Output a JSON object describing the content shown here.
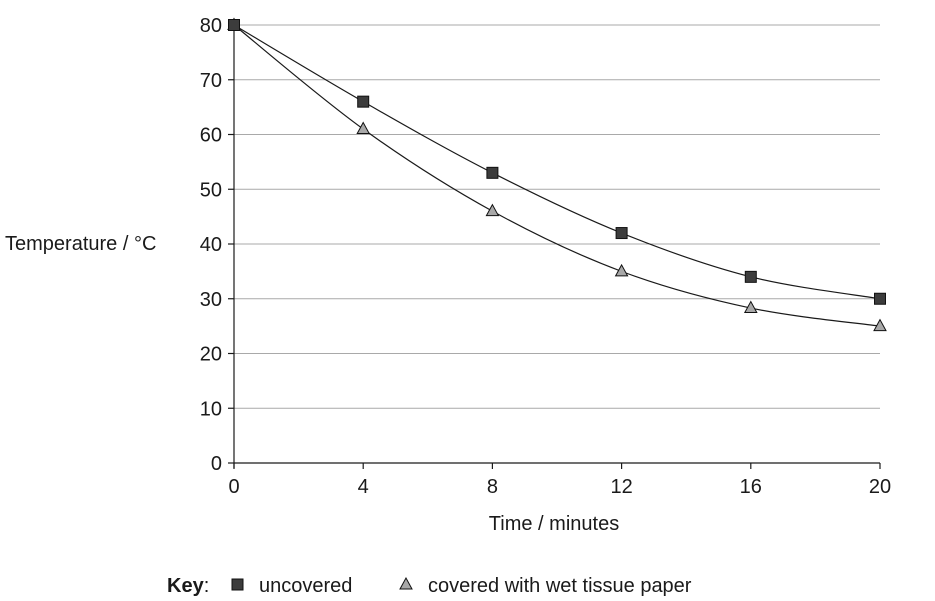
{
  "chart_data": {
    "type": "line",
    "xlabel": "Time / minutes",
    "ylabel": "Temperature / °C",
    "x": [
      0,
      4,
      8,
      12,
      16,
      20
    ],
    "xticks": [
      "0",
      "4",
      "8",
      "12",
      "16",
      "20"
    ],
    "yticks": [
      "0",
      "10",
      "20",
      "30",
      "40",
      "50",
      "60",
      "70",
      "80"
    ],
    "xlim": [
      0,
      20
    ],
    "ylim": [
      0,
      80
    ],
    "grid": "horizontal",
    "legend_position": "bottom",
    "series": [
      {
        "name": "uncovered",
        "marker": "square",
        "color": "#3c3c3c",
        "values": [
          80,
          66,
          53,
          42,
          34,
          30
        ]
      },
      {
        "name": "covered with wet tissue paper",
        "marker": "triangle",
        "color": "#a8a8a8",
        "values": [
          80,
          61,
          46,
          35,
          28.3,
          25
        ]
      }
    ]
  },
  "key": {
    "label": "Key",
    "separator": ":"
  }
}
